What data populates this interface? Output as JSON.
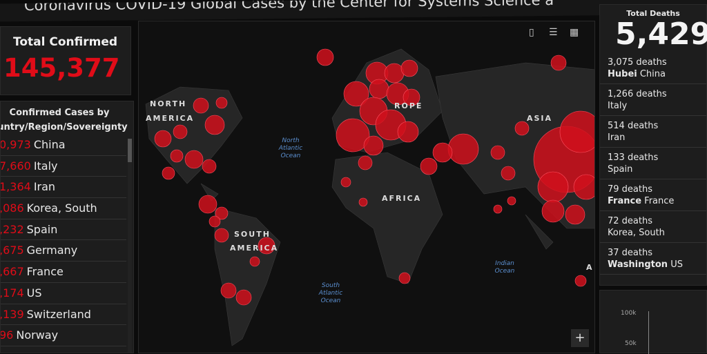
{
  "header": {
    "title": "Coronavirus COVID-19 Global Cases by the Center for Systems Science a"
  },
  "total_confirmed": {
    "label": "Total Confirmed",
    "value": "145,377"
  },
  "country_list": {
    "header_line1": "Confirmed Cases by",
    "header_line2": "ountry/Region/Sovereignty",
    "items": [
      {
        "count": "0,973",
        "name": "China"
      },
      {
        "count": "7,660",
        "name": "Italy"
      },
      {
        "count": "1,364",
        "name": "Iran"
      },
      {
        "count": ",086",
        "name": "Korea, South"
      },
      {
        "count": ",232",
        "name": "Spain"
      },
      {
        "count": ",675",
        "name": "Germany"
      },
      {
        "count": ",667",
        "name": "France"
      },
      {
        "count": ",174",
        "name": "US"
      },
      {
        "count": ",139",
        "name": "Switzerland"
      },
      {
        "count": "96",
        "name": "Norway"
      }
    ]
  },
  "map": {
    "labels": {
      "na1": "NORTH",
      "na2": "AMERICA",
      "europe": "ROPE",
      "asia": "ASIA",
      "africa": "AFRICA",
      "sa1": "SOUTH",
      "sa2": "AMERICA",
      "a": "A"
    },
    "oceans": {
      "north_atlantic": "North Atlantic Ocean",
      "south_atlantic": "South Atlantic Ocean",
      "indian": "Indian Ocean"
    },
    "tools": {
      "bookmark": "bookmark-icon",
      "list": "list-icon",
      "grid": "grid-icon"
    },
    "zoom_in": "+",
    "bubble_color": "#d0101c"
  },
  "total_deaths": {
    "label": "Total Deaths",
    "value": "5,429",
    "items": [
      {
        "count": "3,075 deaths",
        "place_bold": "Hubei",
        "place": "China"
      },
      {
        "count": "1,266 deaths",
        "place_bold": "",
        "place": "Italy"
      },
      {
        "count": "514 deaths",
        "place_bold": "",
        "place": "Iran"
      },
      {
        "count": "133 deaths",
        "place_bold": "",
        "place": "Spain"
      },
      {
        "count": "79 deaths",
        "place_bold": "France",
        "place": "France"
      },
      {
        "count": "72 deaths",
        "place_bold": "",
        "place": "Korea, South"
      },
      {
        "count": "37 deaths",
        "place_bold": "Washington",
        "place": "US"
      }
    ]
  },
  "chart": {
    "ticks": [
      "100k",
      "50k"
    ]
  }
}
